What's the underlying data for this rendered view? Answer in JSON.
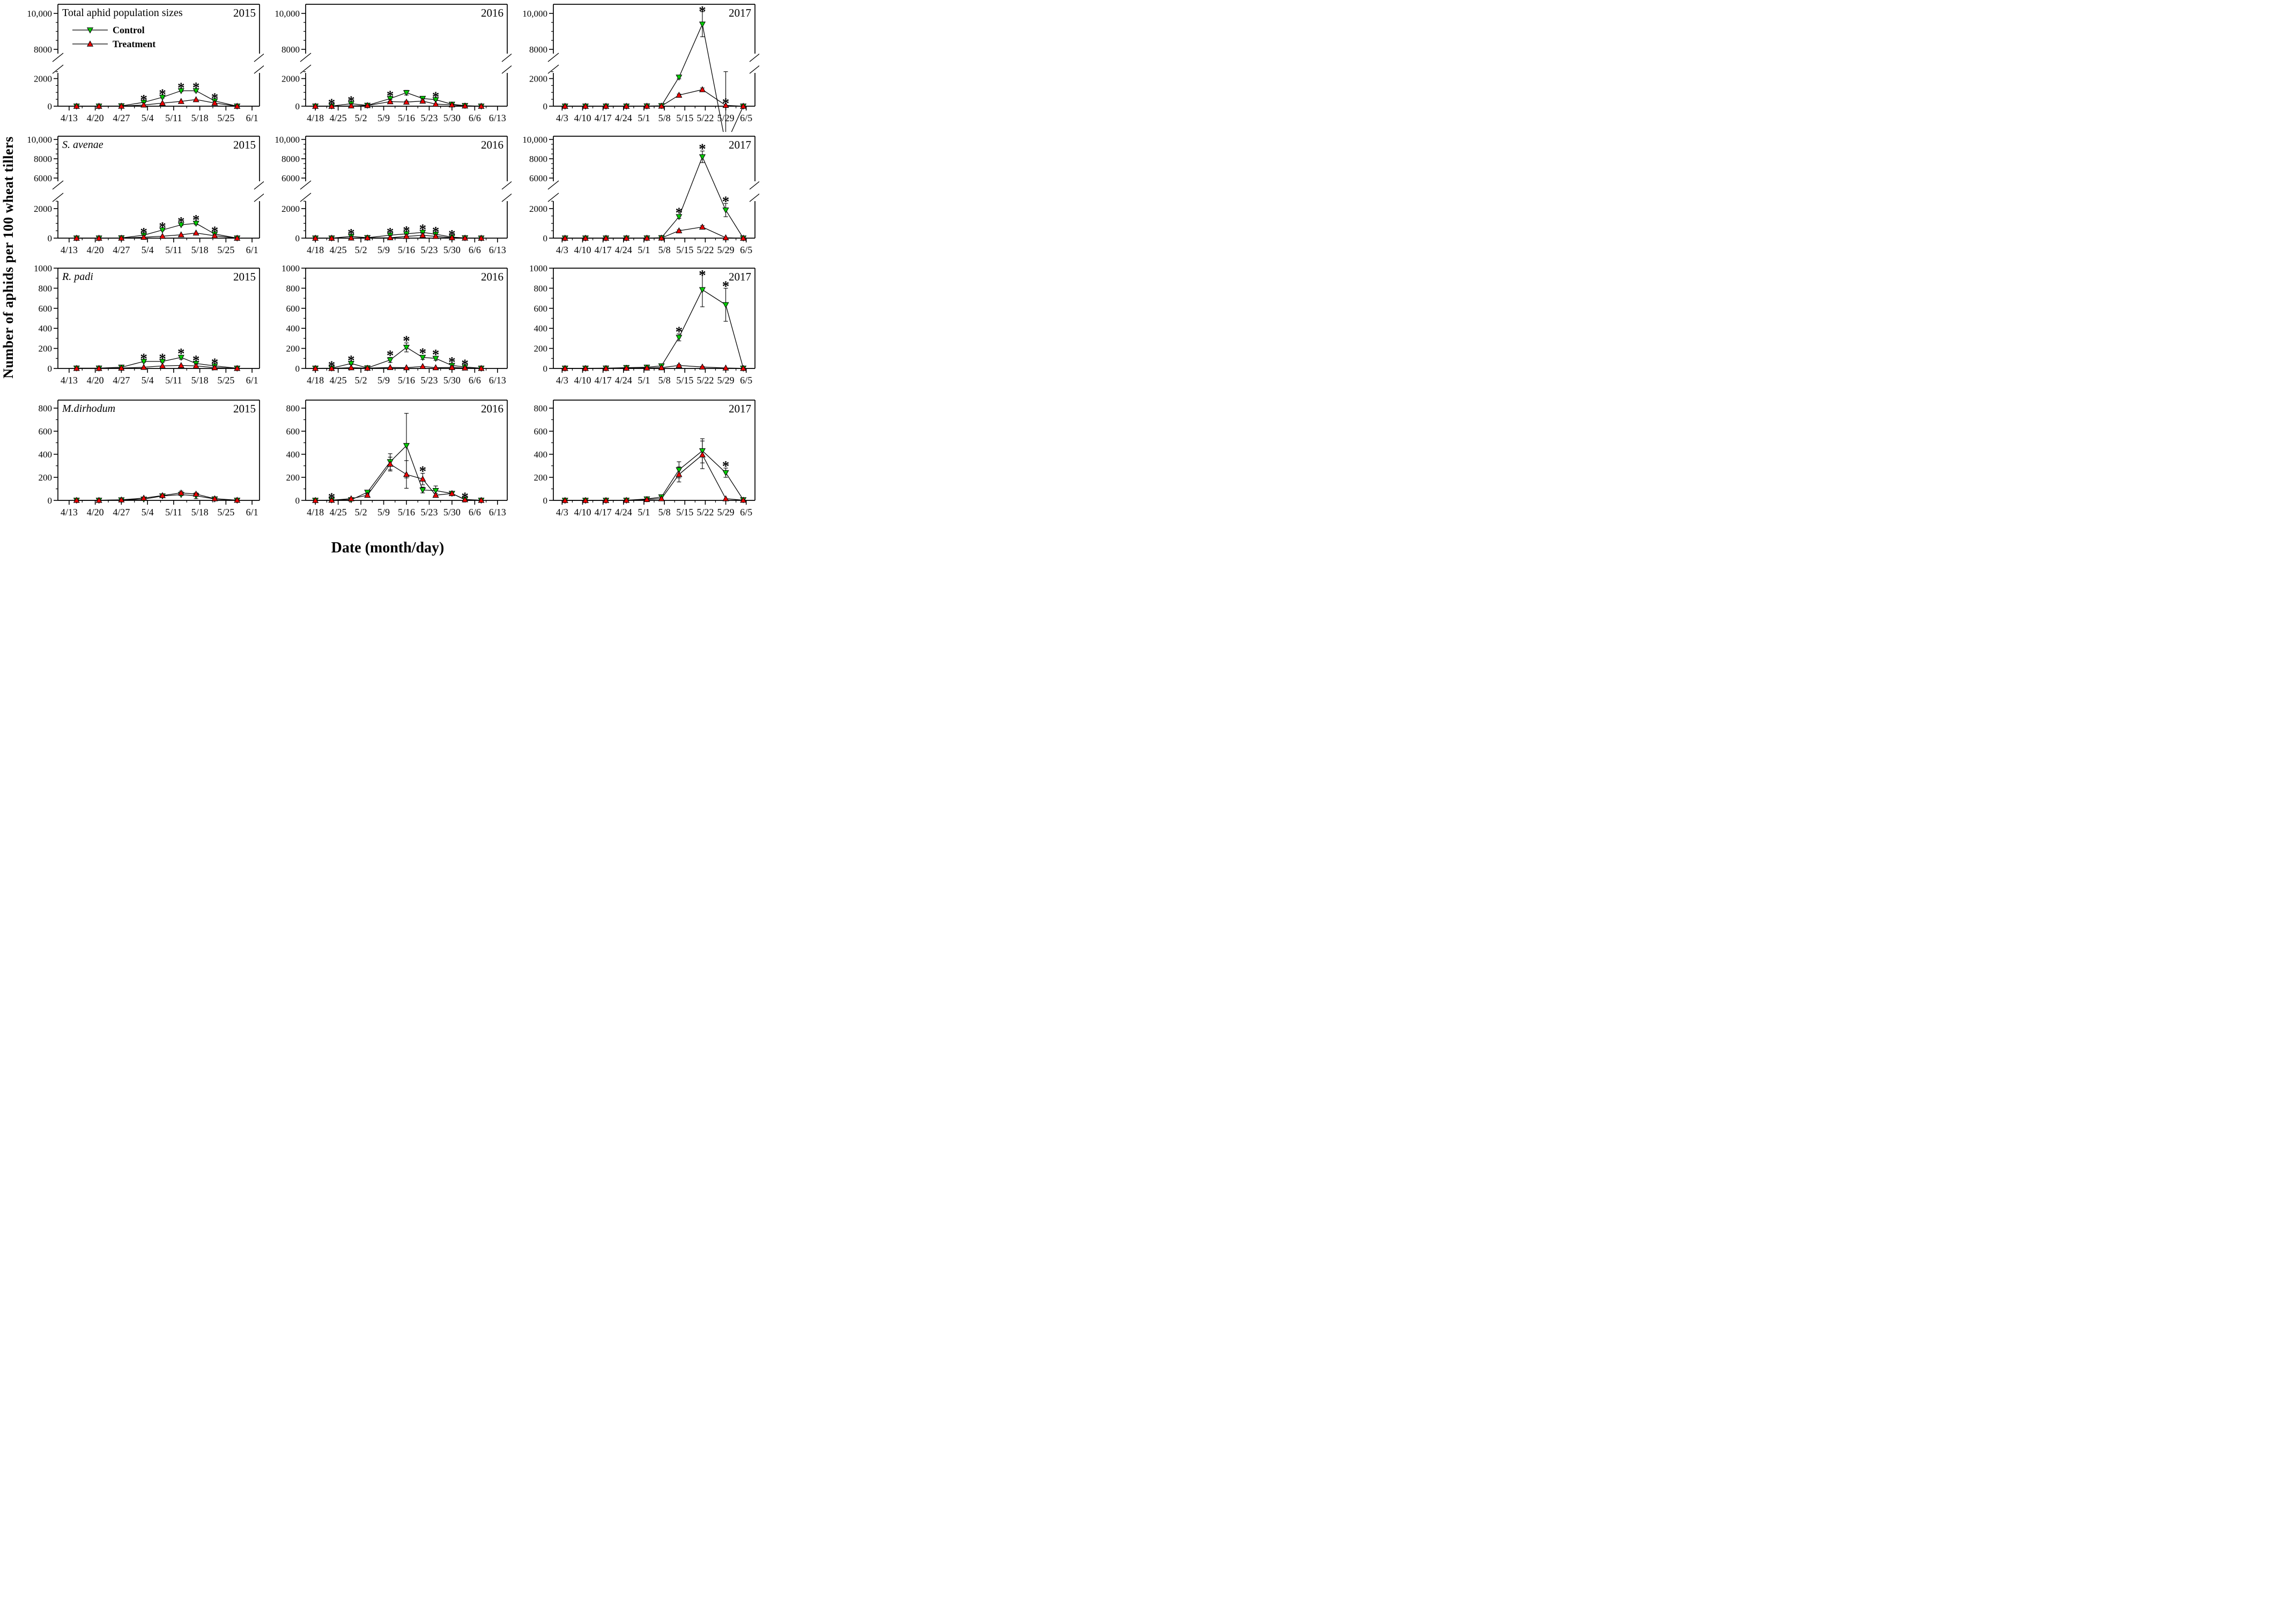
{
  "figure": {
    "y_axis_title": "Number of aphids per 100 wheat tillers",
    "x_axis_title": "Date (month/day)",
    "significance_symbol": "*",
    "legend": {
      "control_label": "Control",
      "treatment_label": "Treatment"
    },
    "colors": {
      "control": "#00CC00",
      "treatment": "#EE0000",
      "line": "#000000"
    }
  },
  "axes": {
    "x": {
      "x2015": {
        "domain_days": 54,
        "tick_days": [
          3,
          10,
          17,
          24,
          31,
          38,
          45,
          52
        ],
        "tick_labels": [
          "4/13",
          "4/20",
          "4/27",
          "5/4",
          "5/11",
          "5/18",
          "5/25",
          "6/1"
        ]
      },
      "x2016": {
        "domain_days": 62,
        "tick_days": [
          3,
          10,
          17,
          24,
          31,
          38,
          45,
          52,
          59
        ],
        "tick_labels": [
          "4/18",
          "4/25",
          "5/2",
          "5/9",
          "5/16",
          "5/23",
          "5/30",
          "6/6",
          "6/13"
        ]
      },
      "x2017": {
        "domain_days": 69,
        "tick_days": [
          3,
          10,
          17,
          24,
          31,
          38,
          45,
          52,
          59,
          66
        ],
        "tick_labels": [
          "4/3",
          "4/10",
          "4/17",
          "4/24",
          "5/1",
          "5/8",
          "5/15",
          "5/22",
          "5/29",
          "6/5"
        ]
      }
    },
    "y": {
      "b1": {
        "kind": "broken",
        "major": [
          [
            0,
            "0"
          ],
          [
            2000,
            "2000"
          ],
          [
            8000,
            "8000"
          ],
          [
            10000,
            "10,000"
          ]
        ],
        "minor": [
          500,
          1000,
          1500,
          2500,
          8500,
          9000,
          9500
        ]
      },
      "b2": {
        "kind": "broken",
        "major": [
          [
            0,
            "0"
          ],
          [
            2000,
            "2000"
          ],
          [
            6000,
            "6000"
          ],
          [
            8000,
            "8000"
          ],
          [
            10000,
            "10,000"
          ]
        ],
        "minor": [
          500,
          1000,
          1500,
          2500,
          6500,
          7000,
          7500,
          8500,
          9000,
          9500
        ]
      },
      "l1000": {
        "kind": "linear",
        "major": [
          [
            0,
            "0"
          ],
          [
            200,
            "200"
          ],
          [
            400,
            "400"
          ],
          [
            600,
            "600"
          ],
          [
            800,
            "800"
          ],
          [
            1000,
            "1000"
          ]
        ],
        "minor": [
          100,
          300,
          500,
          700,
          900
        ]
      },
      "l800": {
        "kind": "linear",
        "major": [
          [
            0,
            "0"
          ],
          [
            200,
            "200"
          ],
          [
            400,
            "400"
          ],
          [
            600,
            "600"
          ],
          [
            800,
            "800"
          ]
        ],
        "minor": [
          100,
          300,
          500,
          700
        ]
      }
    }
  },
  "chart_data": [
    {
      "id": "total-2015",
      "type": "line",
      "title": "Total aphid population sizes",
      "title_italic": false,
      "year": "2015",
      "x_axis": "x2015",
      "y_axis": "b1",
      "show_legend": true,
      "days": [
        5,
        11,
        17,
        23,
        28,
        33,
        37,
        42,
        48
      ],
      "series": [
        {
          "name": "Control",
          "values": [
            0,
            0,
            20,
            280,
            650,
            1120,
            1120,
            380,
            0
          ],
          "errors": [
            0,
            0,
            0,
            30,
            60,
            60,
            90,
            40,
            0
          ]
        },
        {
          "name": "Treatment",
          "values": [
            0,
            0,
            5,
            90,
            220,
            350,
            480,
            230,
            0
          ],
          "errors": [
            0,
            0,
            0,
            0,
            0,
            0,
            0,
            0,
            0
          ]
        }
      ],
      "significant_days": [
        23,
        28,
        33,
        37,
        42
      ]
    },
    {
      "id": "total-2016",
      "type": "line",
      "title": "",
      "title_italic": false,
      "year": "2016",
      "x_axis": "x2016",
      "y_axis": "b1",
      "show_legend": false,
      "days": [
        3,
        8,
        14,
        19,
        26,
        31,
        36,
        40,
        45,
        49,
        54
      ],
      "series": [
        {
          "name": "Control",
          "values": [
            0,
            10,
            180,
            60,
            550,
            980,
            560,
            470,
            140,
            40,
            0
          ],
          "errors": [
            0,
            0,
            30,
            10,
            60,
            170,
            40,
            60,
            20,
            10,
            0
          ]
        },
        {
          "name": "Treatment",
          "values": [
            0,
            0,
            25,
            50,
            330,
            300,
            370,
            150,
            100,
            20,
            0
          ],
          "errors": [
            0,
            0,
            0,
            0,
            40,
            70,
            40,
            20,
            15,
            0,
            0
          ]
        }
      ],
      "significant_days": [
        8,
        14,
        26,
        40
      ]
    },
    {
      "id": "total-2017",
      "type": "line",
      "title": "",
      "title_italic": false,
      "year": "2017",
      "x_axis": "x2017",
      "y_axis": "b1",
      "show_legend": false,
      "days": [
        4,
        11,
        18,
        25,
        32,
        37,
        43,
        51,
        59,
        65
      ],
      "series": [
        {
          "name": "Control",
          "values": [
            0,
            0,
            0,
            0,
            10,
            30,
            2100,
            9400,
            2700,
            0
          ],
          "errors": [
            0,
            0,
            0,
            0,
            0,
            0,
            120,
            700,
            200,
            0
          ]
        },
        {
          "name": "Treatment",
          "values": [
            0,
            0,
            0,
            0,
            5,
            10,
            800,
            1200,
            60,
            0
          ],
          "errors": [
            0,
            0,
            0,
            0,
            0,
            0,
            80,
            120,
            0,
            0
          ]
        }
      ],
      "significant_days": [
        51,
        59
      ]
    },
    {
      "id": "savenae-2015",
      "type": "line",
      "title": "S. avenae",
      "title_italic": true,
      "year": "2015",
      "x_axis": "x2015",
      "y_axis": "b2",
      "show_legend": false,
      "days": [
        5,
        11,
        17,
        23,
        28,
        33,
        37,
        42,
        48
      ],
      "series": [
        {
          "name": "Control",
          "values": [
            0,
            0,
            15,
            200,
            550,
            900,
            1000,
            280,
            0
          ],
          "errors": [
            0,
            0,
            0,
            20,
            40,
            50,
            90,
            30,
            0
          ]
        },
        {
          "name": "Treatment",
          "values": [
            0,
            0,
            3,
            60,
            130,
            230,
            350,
            160,
            0
          ],
          "errors": [
            0,
            0,
            0,
            0,
            0,
            0,
            0,
            0,
            0
          ]
        }
      ],
      "significant_days": [
        23,
        28,
        33,
        37,
        42
      ]
    },
    {
      "id": "savenae-2016",
      "type": "line",
      "title": "",
      "title_italic": true,
      "year": "2016",
      "x_axis": "x2016",
      "y_axis": "b2",
      "show_legend": false,
      "days": [
        3,
        8,
        14,
        19,
        26,
        31,
        36,
        40,
        45,
        49,
        54
      ],
      "series": [
        {
          "name": "Control",
          "values": [
            0,
            0,
            120,
            30,
            200,
            290,
            390,
            260,
            70,
            15,
            0
          ],
          "errors": [
            0,
            0,
            20,
            5,
            25,
            35,
            60,
            30,
            10,
            0,
            0
          ]
        },
        {
          "name": "Treatment",
          "values": [
            0,
            0,
            10,
            20,
            30,
            120,
            190,
            120,
            30,
            5,
            0
          ],
          "errors": [
            0,
            0,
            0,
            0,
            5,
            20,
            30,
            20,
            5,
            0,
            0
          ]
        }
      ],
      "significant_days": [
        14,
        26,
        31,
        36,
        40,
        45
      ]
    },
    {
      "id": "savenae-2017",
      "type": "line",
      "title": "",
      "title_italic": true,
      "year": "2017",
      "x_axis": "x2017",
      "y_axis": "b2",
      "show_legend": false,
      "days": [
        4,
        11,
        18,
        25,
        32,
        37,
        43,
        51,
        59,
        65
      ],
      "series": [
        {
          "name": "Control",
          "values": [
            0,
            0,
            0,
            0,
            5,
            25,
            1450,
            8200,
            1900,
            0
          ],
          "errors": [
            0,
            0,
            0,
            0,
            0,
            0,
            120,
            600,
            450,
            0
          ]
        },
        {
          "name": "Treatment",
          "values": [
            0,
            0,
            0,
            0,
            3,
            8,
            500,
            750,
            30,
            0
          ],
          "errors": [
            0,
            0,
            0,
            0,
            0,
            0,
            60,
            90,
            0,
            0
          ]
        }
      ],
      "significant_days": [
        43,
        51,
        59
      ]
    },
    {
      "id": "rpadi-2015",
      "type": "line",
      "title": "R. padi",
      "title_italic": true,
      "year": "2015",
      "x_axis": "x2015",
      "y_axis": "l1000",
      "show_legend": false,
      "days": [
        5,
        11,
        17,
        23,
        28,
        33,
        37,
        42,
        48
      ],
      "series": [
        {
          "name": "Control",
          "values": [
            3,
            3,
            12,
            70,
            70,
            110,
            50,
            25,
            2
          ],
          "errors": [
            0,
            0,
            0,
            8,
            8,
            18,
            8,
            5,
            0
          ]
        },
        {
          "name": "Treatment",
          "values": [
            1,
            1,
            4,
            12,
            25,
            30,
            25,
            8,
            1
          ],
          "errors": [
            0,
            0,
            0,
            0,
            0,
            0,
            0,
            0,
            0
          ]
        }
      ],
      "significant_days": [
        23,
        28,
        33,
        37,
        42
      ]
    },
    {
      "id": "rpadi-2016",
      "type": "line",
      "title": "",
      "title_italic": true,
      "year": "2016",
      "x_axis": "x2016",
      "y_axis": "l1000",
      "show_legend": false,
      "days": [
        3,
        8,
        14,
        19,
        26,
        31,
        36,
        40,
        45,
        49,
        54
      ],
      "series": [
        {
          "name": "Control",
          "values": [
            2,
            3,
            50,
            5,
            85,
            210,
            110,
            100,
            30,
            15,
            2
          ],
          "errors": [
            0,
            0,
            10,
            0,
            25,
            45,
            20,
            18,
            12,
            5,
            0
          ]
        },
        {
          "name": "Treatment",
          "values": [
            1,
            1,
            8,
            3,
            10,
            8,
            20,
            8,
            10,
            5,
            1
          ],
          "errors": [
            0,
            0,
            0,
            0,
            0,
            0,
            0,
            0,
            0,
            0,
            0
          ]
        }
      ],
      "significant_days": [
        8,
        14,
        26,
        31,
        36,
        40,
        45,
        49
      ]
    },
    {
      "id": "rpadi-2017",
      "type": "line",
      "title": "",
      "title_italic": true,
      "year": "2017",
      "x_axis": "x2017",
      "y_axis": "l1000",
      "show_legend": false,
      "days": [
        4,
        11,
        18,
        25,
        32,
        37,
        43,
        51,
        59,
        65
      ],
      "series": [
        {
          "name": "Control",
          "values": [
            2,
            2,
            3,
            8,
            12,
            25,
            310,
            785,
            635,
            2
          ],
          "errors": [
            0,
            0,
            0,
            0,
            0,
            0,
            35,
            170,
            165,
            0
          ]
        },
        {
          "name": "Treatment",
          "values": [
            1,
            1,
            1,
            3,
            5,
            8,
            30,
            15,
            5,
            1
          ],
          "errors": [
            0,
            0,
            0,
            0,
            0,
            0,
            10,
            5,
            0,
            0
          ]
        }
      ],
      "significant_days": [
        43,
        51,
        59
      ]
    },
    {
      "id": "mdirhodum-2015",
      "type": "line",
      "title": "M.dirhodum",
      "title_italic": true,
      "year": "2015",
      "x_axis": "x2015",
      "y_axis": "l800",
      "show_legend": false,
      "days": [
        5,
        11,
        17,
        23,
        28,
        33,
        37,
        42,
        48
      ],
      "series": [
        {
          "name": "Control",
          "values": [
            1,
            1,
            4,
            10,
            38,
            50,
            40,
            12,
            1
          ],
          "errors": [
            0,
            0,
            0,
            0,
            5,
            8,
            25,
            5,
            0
          ]
        },
        {
          "name": "Treatment",
          "values": [
            1,
            1,
            5,
            20,
            42,
            65,
            55,
            15,
            2
          ],
          "errors": [
            0,
            0,
            0,
            0,
            5,
            15,
            10,
            5,
            0
          ]
        }
      ],
      "significant_days": []
    },
    {
      "id": "mdirhodum-2016",
      "type": "line",
      "title": "",
      "title_italic": true,
      "year": "2016",
      "x_axis": "x2016",
      "y_axis": "l800",
      "show_legend": false,
      "days": [
        3,
        8,
        14,
        19,
        26,
        31,
        36,
        40,
        45,
        49,
        54
      ],
      "series": [
        {
          "name": "Control",
          "values": [
            0,
            3,
            5,
            70,
            335,
            475,
            90,
            85,
            60,
            8,
            1
          ],
          "errors": [
            0,
            0,
            0,
            15,
            70,
            280,
            25,
            40,
            15,
            0,
            0
          ]
        },
        {
          "name": "Treatment",
          "values": [
            0,
            2,
            15,
            45,
            315,
            225,
            185,
            45,
            60,
            6,
            1
          ],
          "errors": [
            0,
            0,
            0,
            10,
            60,
            120,
            50,
            15,
            15,
            0,
            0
          ]
        }
      ],
      "significant_days": [
        8,
        36,
        49
      ]
    },
    {
      "id": "mdirhodum-2017",
      "type": "line",
      "title": "",
      "title_italic": true,
      "year": "2017",
      "x_axis": "x2017",
      "y_axis": "l800",
      "show_legend": false,
      "days": [
        4,
        11,
        18,
        25,
        32,
        37,
        43,
        51,
        59,
        65
      ],
      "series": [
        {
          "name": "Control",
          "values": [
            0,
            0,
            0,
            1,
            12,
            30,
            265,
            430,
            240,
            5
          ],
          "errors": [
            0,
            0,
            0,
            0,
            0,
            0,
            70,
            105,
            40,
            0
          ]
        },
        {
          "name": "Treatment",
          "values": [
            0,
            0,
            0,
            1,
            8,
            15,
            225,
            395,
            15,
            2
          ],
          "errors": [
            0,
            0,
            0,
            0,
            0,
            0,
            65,
            120,
            0,
            0
          ]
        }
      ],
      "significant_days": [
        59
      ]
    }
  ]
}
